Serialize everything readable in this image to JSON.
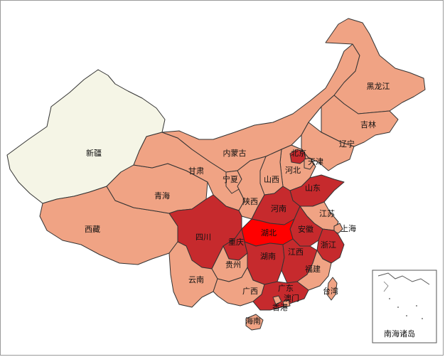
{
  "palette": {
    "light": "#f5f5e6",
    "low": "#f0a384",
    "mid": "#c62a2d",
    "high": "#ff0000",
    "border": "#333333"
  },
  "map": {
    "regions": [
      {
        "key": "xinjiang",
        "name": "新疆",
        "level": "light"
      },
      {
        "key": "xizang",
        "name": "西藏",
        "level": "low"
      },
      {
        "key": "qinghai",
        "name": "青海",
        "level": "low"
      },
      {
        "key": "gansu",
        "name": "甘肃",
        "level": "low"
      },
      {
        "key": "neimenggu",
        "name": "内蒙古",
        "level": "low"
      },
      {
        "key": "heilongjiang",
        "name": "黑龙江",
        "level": "low"
      },
      {
        "key": "jilin",
        "name": "吉林",
        "level": "low"
      },
      {
        "key": "liaoning",
        "name": "辽宁",
        "level": "low"
      },
      {
        "key": "beijing",
        "name": "北京",
        "level": "mid"
      },
      {
        "key": "tianjin",
        "name": "天津",
        "level": "low"
      },
      {
        "key": "hebei",
        "name": "河北",
        "level": "low"
      },
      {
        "key": "shanxi",
        "name": "山西",
        "level": "low"
      },
      {
        "key": "ningxia",
        "name": "宁夏",
        "level": "low"
      },
      {
        "key": "shaanxi",
        "name": "陕西",
        "level": "low"
      },
      {
        "key": "shandong",
        "name": "山东",
        "level": "mid"
      },
      {
        "key": "henan",
        "name": "河南",
        "level": "mid"
      },
      {
        "key": "jiangsu",
        "name": "江苏",
        "level": "low"
      },
      {
        "key": "shanghai",
        "name": "上海",
        "level": "low"
      },
      {
        "key": "anhui",
        "name": "安徽",
        "level": "mid"
      },
      {
        "key": "hubei",
        "name": "湖北",
        "level": "high"
      },
      {
        "key": "sichuan",
        "name": "四川",
        "level": "mid"
      },
      {
        "key": "chongqing",
        "name": "重庆",
        "level": "mid"
      },
      {
        "key": "zhejiang",
        "name": "浙江",
        "level": "mid"
      },
      {
        "key": "hunan",
        "name": "湖南",
        "level": "mid"
      },
      {
        "key": "jiangxi",
        "name": "江西",
        "level": "mid"
      },
      {
        "key": "guizhou",
        "name": "贵州",
        "level": "low"
      },
      {
        "key": "fujian",
        "name": "福建",
        "level": "low"
      },
      {
        "key": "yunnan",
        "name": "云南",
        "level": "low"
      },
      {
        "key": "guangxi",
        "name": "广西",
        "level": "low"
      },
      {
        "key": "guangdong",
        "name": "广东",
        "level": "mid"
      },
      {
        "key": "taiwan",
        "name": "台湾",
        "level": "low"
      },
      {
        "key": "macau",
        "name": "澳门",
        "level": "low"
      },
      {
        "key": "hongkong",
        "name": "香港",
        "level": "low"
      },
      {
        "key": "hainan",
        "name": "海南",
        "level": "low"
      }
    ],
    "inset_label": "南海诸岛"
  }
}
